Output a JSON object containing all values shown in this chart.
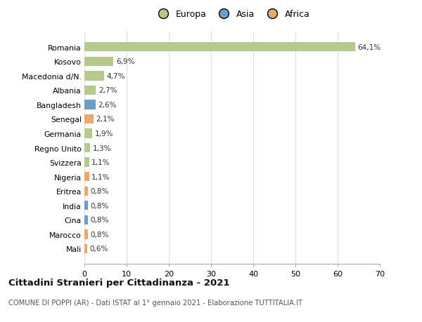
{
  "categories": [
    "Mali",
    "Marocco",
    "Cina",
    "India",
    "Eritrea",
    "Nigeria",
    "Svizzera",
    "Regno Unito",
    "Germania",
    "Senegal",
    "Bangladesh",
    "Albania",
    "Macedonia d/N.",
    "Kosovo",
    "Romania"
  ],
  "values": [
    0.6,
    0.8,
    0.8,
    0.8,
    0.8,
    1.1,
    1.1,
    1.3,
    1.9,
    2.1,
    2.6,
    2.7,
    4.7,
    6.9,
    64.1
  ],
  "labels": [
    "0,6%",
    "0,8%",
    "0,8%",
    "0,8%",
    "0,8%",
    "1,1%",
    "1,1%",
    "1,3%",
    "1,9%",
    "2,1%",
    "2,6%",
    "2,7%",
    "4,7%",
    "6,9%",
    "64,1%"
  ],
  "colors": [
    "#e8a86e",
    "#e8a86e",
    "#6b9ec7",
    "#6b9ec7",
    "#e8a86e",
    "#e8a86e",
    "#b5c98a",
    "#b5c98a",
    "#b5c98a",
    "#e8a86e",
    "#6b9ec7",
    "#b5c98a",
    "#b5c98a",
    "#b5c98a",
    "#b5c98a"
  ],
  "legend_labels": [
    "Europa",
    "Asia",
    "Africa"
  ],
  "legend_colors": [
    "#b5c98a",
    "#6b9ec7",
    "#e8a86e"
  ],
  "title": "Cittadini Stranieri per Cittadinanza - 2021",
  "subtitle": "COMUNE DI POPPI (AR) - Dati ISTAT al 1° gennaio 2021 - Elaborazione TUTTITALIA.IT",
  "xlim": [
    0,
    70
  ],
  "xticks": [
    0,
    10,
    20,
    30,
    40,
    50,
    60,
    70
  ],
  "bg_color": "#ffffff",
  "grid_color": "#dddddd"
}
